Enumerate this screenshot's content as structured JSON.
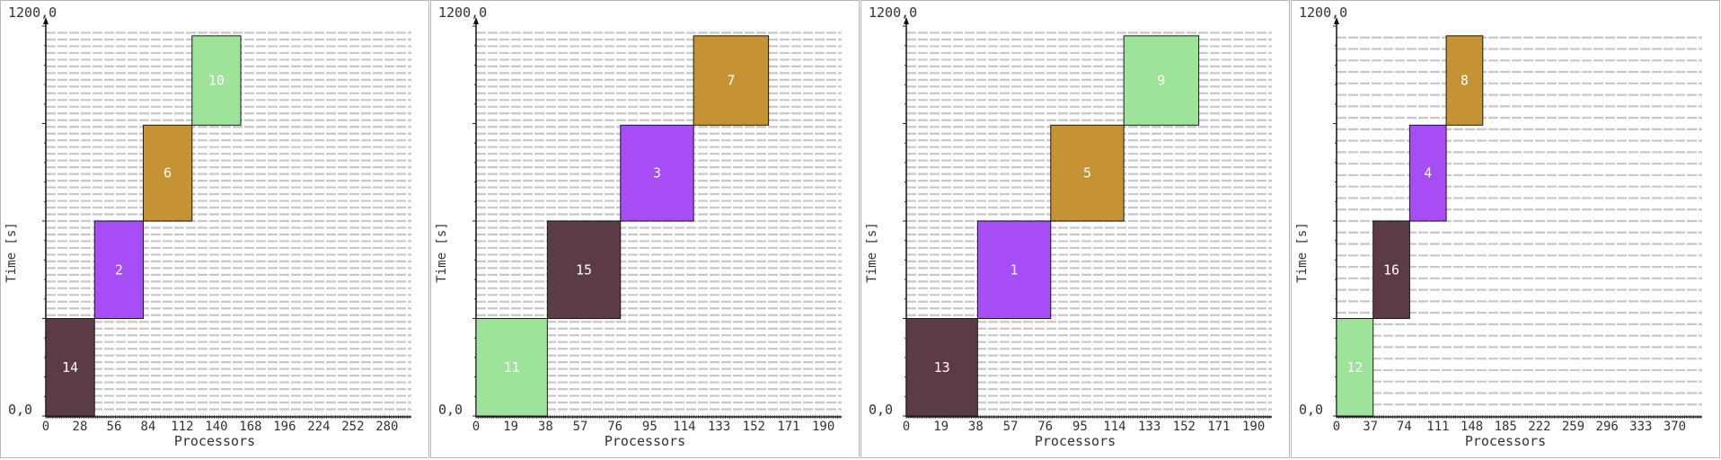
{
  "chart_data": [
    {
      "type": "gantt",
      "ylabel": "Time [s]",
      "xlabel": "Processors",
      "ylim": [
        0,
        1200
      ],
      "y_tick_labels": [
        "1200,0",
        "0,0"
      ],
      "xlim": [
        0,
        300
      ],
      "x_tick_labels": [
        "0",
        "28",
        "56",
        "84",
        "112",
        "140",
        "168",
        "196",
        "224",
        "252",
        "280"
      ],
      "x_tick_values": [
        0,
        28,
        56,
        84,
        112,
        140,
        168,
        196,
        224,
        252,
        280
      ],
      "grid": true,
      "blocks": [
        {
          "label": "14",
          "x0": 0,
          "x1": 40,
          "t0": 0,
          "t1": 300,
          "color": "#5b3b45",
          "text_color": "#ffffff"
        },
        {
          "label": "2",
          "x0": 40,
          "x1": 80,
          "t0": 300,
          "t1": 600,
          "color": "#a64df5",
          "text_color": "#ffffff"
        },
        {
          "label": "6",
          "x0": 80,
          "x1": 120,
          "t0": 600,
          "t1": 895,
          "color": "#c59234",
          "text_color": "#ffffff"
        },
        {
          "label": "10",
          "x0": 120,
          "x1": 160,
          "t0": 895,
          "t1": 1170,
          "color": "#9de39a",
          "text_color": "#ffffff"
        }
      ]
    },
    {
      "type": "gantt",
      "ylabel": "Time [s]",
      "xlabel": "Processors",
      "ylim": [
        0,
        1200
      ],
      "y_tick_labels": [
        "1200,0",
        "0,0"
      ],
      "xlim": [
        0,
        200
      ],
      "x_tick_labels": [
        "0",
        "19",
        "38",
        "57",
        "76",
        "95",
        "114",
        "133",
        "152",
        "171",
        "190"
      ],
      "x_tick_values": [
        0,
        19,
        38,
        57,
        76,
        95,
        114,
        133,
        152,
        171,
        190
      ],
      "grid": true,
      "blocks": [
        {
          "label": "11",
          "x0": 0,
          "x1": 39,
          "t0": 0,
          "t1": 300,
          "color": "#9de39a",
          "text_color": "#ffffff"
        },
        {
          "label": "15",
          "x0": 39,
          "x1": 79,
          "t0": 300,
          "t1": 600,
          "color": "#5b3b45",
          "text_color": "#ffffff"
        },
        {
          "label": "3",
          "x0": 79,
          "x1": 119,
          "t0": 600,
          "t1": 895,
          "color": "#a64df5",
          "text_color": "#ffffff"
        },
        {
          "label": "7",
          "x0": 119,
          "x1": 160,
          "t0": 895,
          "t1": 1170,
          "color": "#c59234",
          "text_color": "#ffffff"
        }
      ]
    },
    {
      "type": "gantt",
      "ylabel": "Time [s]",
      "xlabel": "Processors",
      "ylim": [
        0,
        1200
      ],
      "y_tick_labels": [
        "1200,0",
        "0,0"
      ],
      "xlim": [
        0,
        200
      ],
      "x_tick_labels": [
        "0",
        "19",
        "38",
        "57",
        "76",
        "95",
        "114",
        "133",
        "152",
        "171",
        "190"
      ],
      "x_tick_values": [
        0,
        19,
        38,
        57,
        76,
        95,
        114,
        133,
        152,
        171,
        190
      ],
      "grid": true,
      "blocks": [
        {
          "label": "13",
          "x0": 0,
          "x1": 39,
          "t0": 0,
          "t1": 300,
          "color": "#5b3b45",
          "text_color": "#ffffff"
        },
        {
          "label": "1",
          "x0": 39,
          "x1": 79,
          "t0": 300,
          "t1": 600,
          "color": "#a64df5",
          "text_color": "#ffffff"
        },
        {
          "label": "5",
          "x0": 79,
          "x1": 119,
          "t0": 600,
          "t1": 895,
          "color": "#c59234",
          "text_color": "#ffffff"
        },
        {
          "label": "9",
          "x0": 119,
          "x1": 160,
          "t0": 895,
          "t1": 1170,
          "color": "#9de39a",
          "text_color": "#ffffff"
        }
      ]
    },
    {
      "type": "gantt",
      "ylabel": "Time [s]",
      "xlabel": "Processors",
      "ylim": [
        0,
        1200
      ],
      "y_tick_labels": [
        "1200,0",
        "0,0"
      ],
      "xlim": [
        0,
        400
      ],
      "x_tick_labels": [
        "0",
        "37",
        "74",
        "111",
        "148",
        "185",
        "222",
        "259",
        "296",
        "333",
        "370"
      ],
      "x_tick_values": [
        0,
        37,
        74,
        111,
        148,
        185,
        222,
        259,
        296,
        333,
        370
      ],
      "grid": true,
      "blocks": [
        {
          "label": "12",
          "x0": 0,
          "x1": 40,
          "t0": 0,
          "t1": 300,
          "color": "#9de39a",
          "text_color": "#ffffff"
        },
        {
          "label": "16",
          "x0": 40,
          "x1": 80,
          "t0": 300,
          "t1": 600,
          "color": "#5b3b45",
          "text_color": "#ffffff"
        },
        {
          "label": "4",
          "x0": 80,
          "x1": 120,
          "t0": 600,
          "t1": 895,
          "color": "#a64df5",
          "text_color": "#ffffff"
        },
        {
          "label": "8",
          "x0": 120,
          "x1": 160,
          "t0": 895,
          "t1": 1170,
          "color": "#c59234",
          "text_color": "#ffffff"
        }
      ]
    }
  ]
}
